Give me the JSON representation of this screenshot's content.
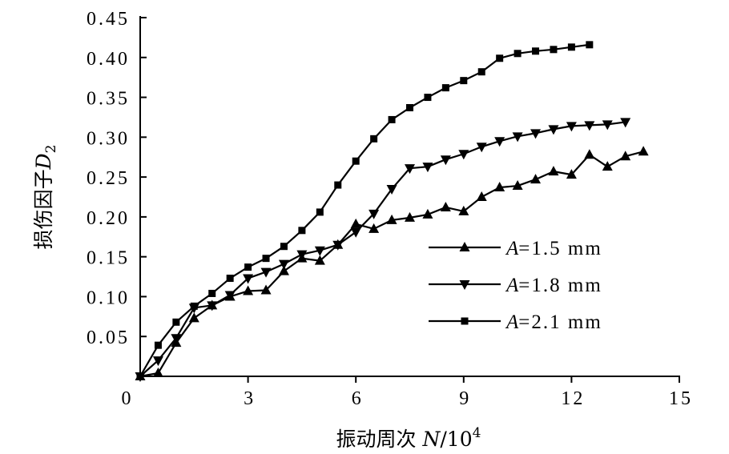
{
  "chart_data": {
    "type": "line",
    "xlabel": {
      "text": "振动周次 ",
      "var": "N",
      "rest": "/10",
      "sup": "4"
    },
    "ylabel": {
      "text": "损伤因子",
      "var": "D",
      "sub": "2"
    },
    "xlim": [
      0,
      15
    ],
    "ylim": [
      0,
      0.45
    ],
    "grid": false,
    "legend": "center-right",
    "xticks": [
      {
        "value": 0,
        "label": "0"
      },
      {
        "value": 3,
        "label": "3"
      },
      {
        "value": 6,
        "label": "6"
      },
      {
        "value": 9,
        "label": "9"
      },
      {
        "value": 12,
        "label": "12"
      },
      {
        "value": 15,
        "label": "15"
      }
    ],
    "yticks": [
      {
        "value": 0.05,
        "label": "0.05"
      },
      {
        "value": 0.1,
        "label": "0.10"
      },
      {
        "value": 0.15,
        "label": "0.15"
      },
      {
        "value": 0.2,
        "label": "0.20"
      },
      {
        "value": 0.25,
        "label": "0.25"
      },
      {
        "value": 0.3,
        "label": "0.30"
      },
      {
        "value": 0.35,
        "label": "0.35"
      },
      {
        "value": 0.4,
        "label": "0.40"
      },
      {
        "value": 0.45,
        "label": "0.45"
      }
    ],
    "series": [
      {
        "name": "A=1.5 mm",
        "marker": "triangle-up",
        "color": "#000000",
        "x": [
          0,
          0.5,
          1.0,
          1.5,
          2.0,
          2.5,
          3.0,
          3.5,
          4.0,
          4.5,
          5.0,
          5.5,
          6.0,
          6.5,
          7.0,
          7.5,
          8.0,
          8.5,
          9.0,
          9.5,
          10.0,
          10.5,
          11.0,
          11.5,
          12.0,
          12.5,
          13.0,
          13.5,
          14.0
        ],
        "y": [
          0,
          0.004,
          0.042,
          0.073,
          0.089,
          0.1,
          0.107,
          0.108,
          0.132,
          0.148,
          0.145,
          0.165,
          0.191,
          0.185,
          0.196,
          0.199,
          0.203,
          0.212,
          0.207,
          0.225,
          0.237,
          0.239,
          0.247,
          0.257,
          0.253,
          0.278,
          0.263,
          0.276,
          0.282
        ]
      },
      {
        "name": "A=1.8 mm",
        "marker": "triangle-down",
        "color": "#000000",
        "x": [
          0,
          0.5,
          1.0,
          1.5,
          2.0,
          2.5,
          3.0,
          3.5,
          4.0,
          4.5,
          5.0,
          5.5,
          6.0,
          6.5,
          7.0,
          7.5,
          8.0,
          8.5,
          9.0,
          9.5,
          10.0,
          10.5,
          11.0,
          11.5,
          12.0,
          12.5,
          13.0,
          13.5
        ],
        "y": [
          0,
          0.02,
          0.048,
          0.086,
          0.089,
          0.102,
          0.123,
          0.131,
          0.141,
          0.153,
          0.158,
          0.165,
          0.181,
          0.204,
          0.235,
          0.261,
          0.263,
          0.272,
          0.279,
          0.288,
          0.295,
          0.301,
          0.305,
          0.31,
          0.314,
          0.315,
          0.316,
          0.319
        ]
      },
      {
        "name": "A=2.1 mm",
        "marker": "square",
        "color": "#000000",
        "x": [
          0,
          0.5,
          1.0,
          1.5,
          2.0,
          2.5,
          3.0,
          3.5,
          4.0,
          4.5,
          5.0,
          5.5,
          6.0,
          6.5,
          7.0,
          7.5,
          8.0,
          8.5,
          9.0,
          9.5,
          10.0,
          10.5,
          11.0,
          11.5,
          12.0,
          12.5
        ],
        "y": [
          0,
          0.039,
          0.068,
          0.088,
          0.104,
          0.123,
          0.137,
          0.148,
          0.163,
          0.183,
          0.206,
          0.24,
          0.27,
          0.298,
          0.322,
          0.337,
          0.35,
          0.362,
          0.371,
          0.382,
          0.399,
          0.405,
          0.408,
          0.41,
          0.413,
          0.416
        ]
      }
    ]
  }
}
